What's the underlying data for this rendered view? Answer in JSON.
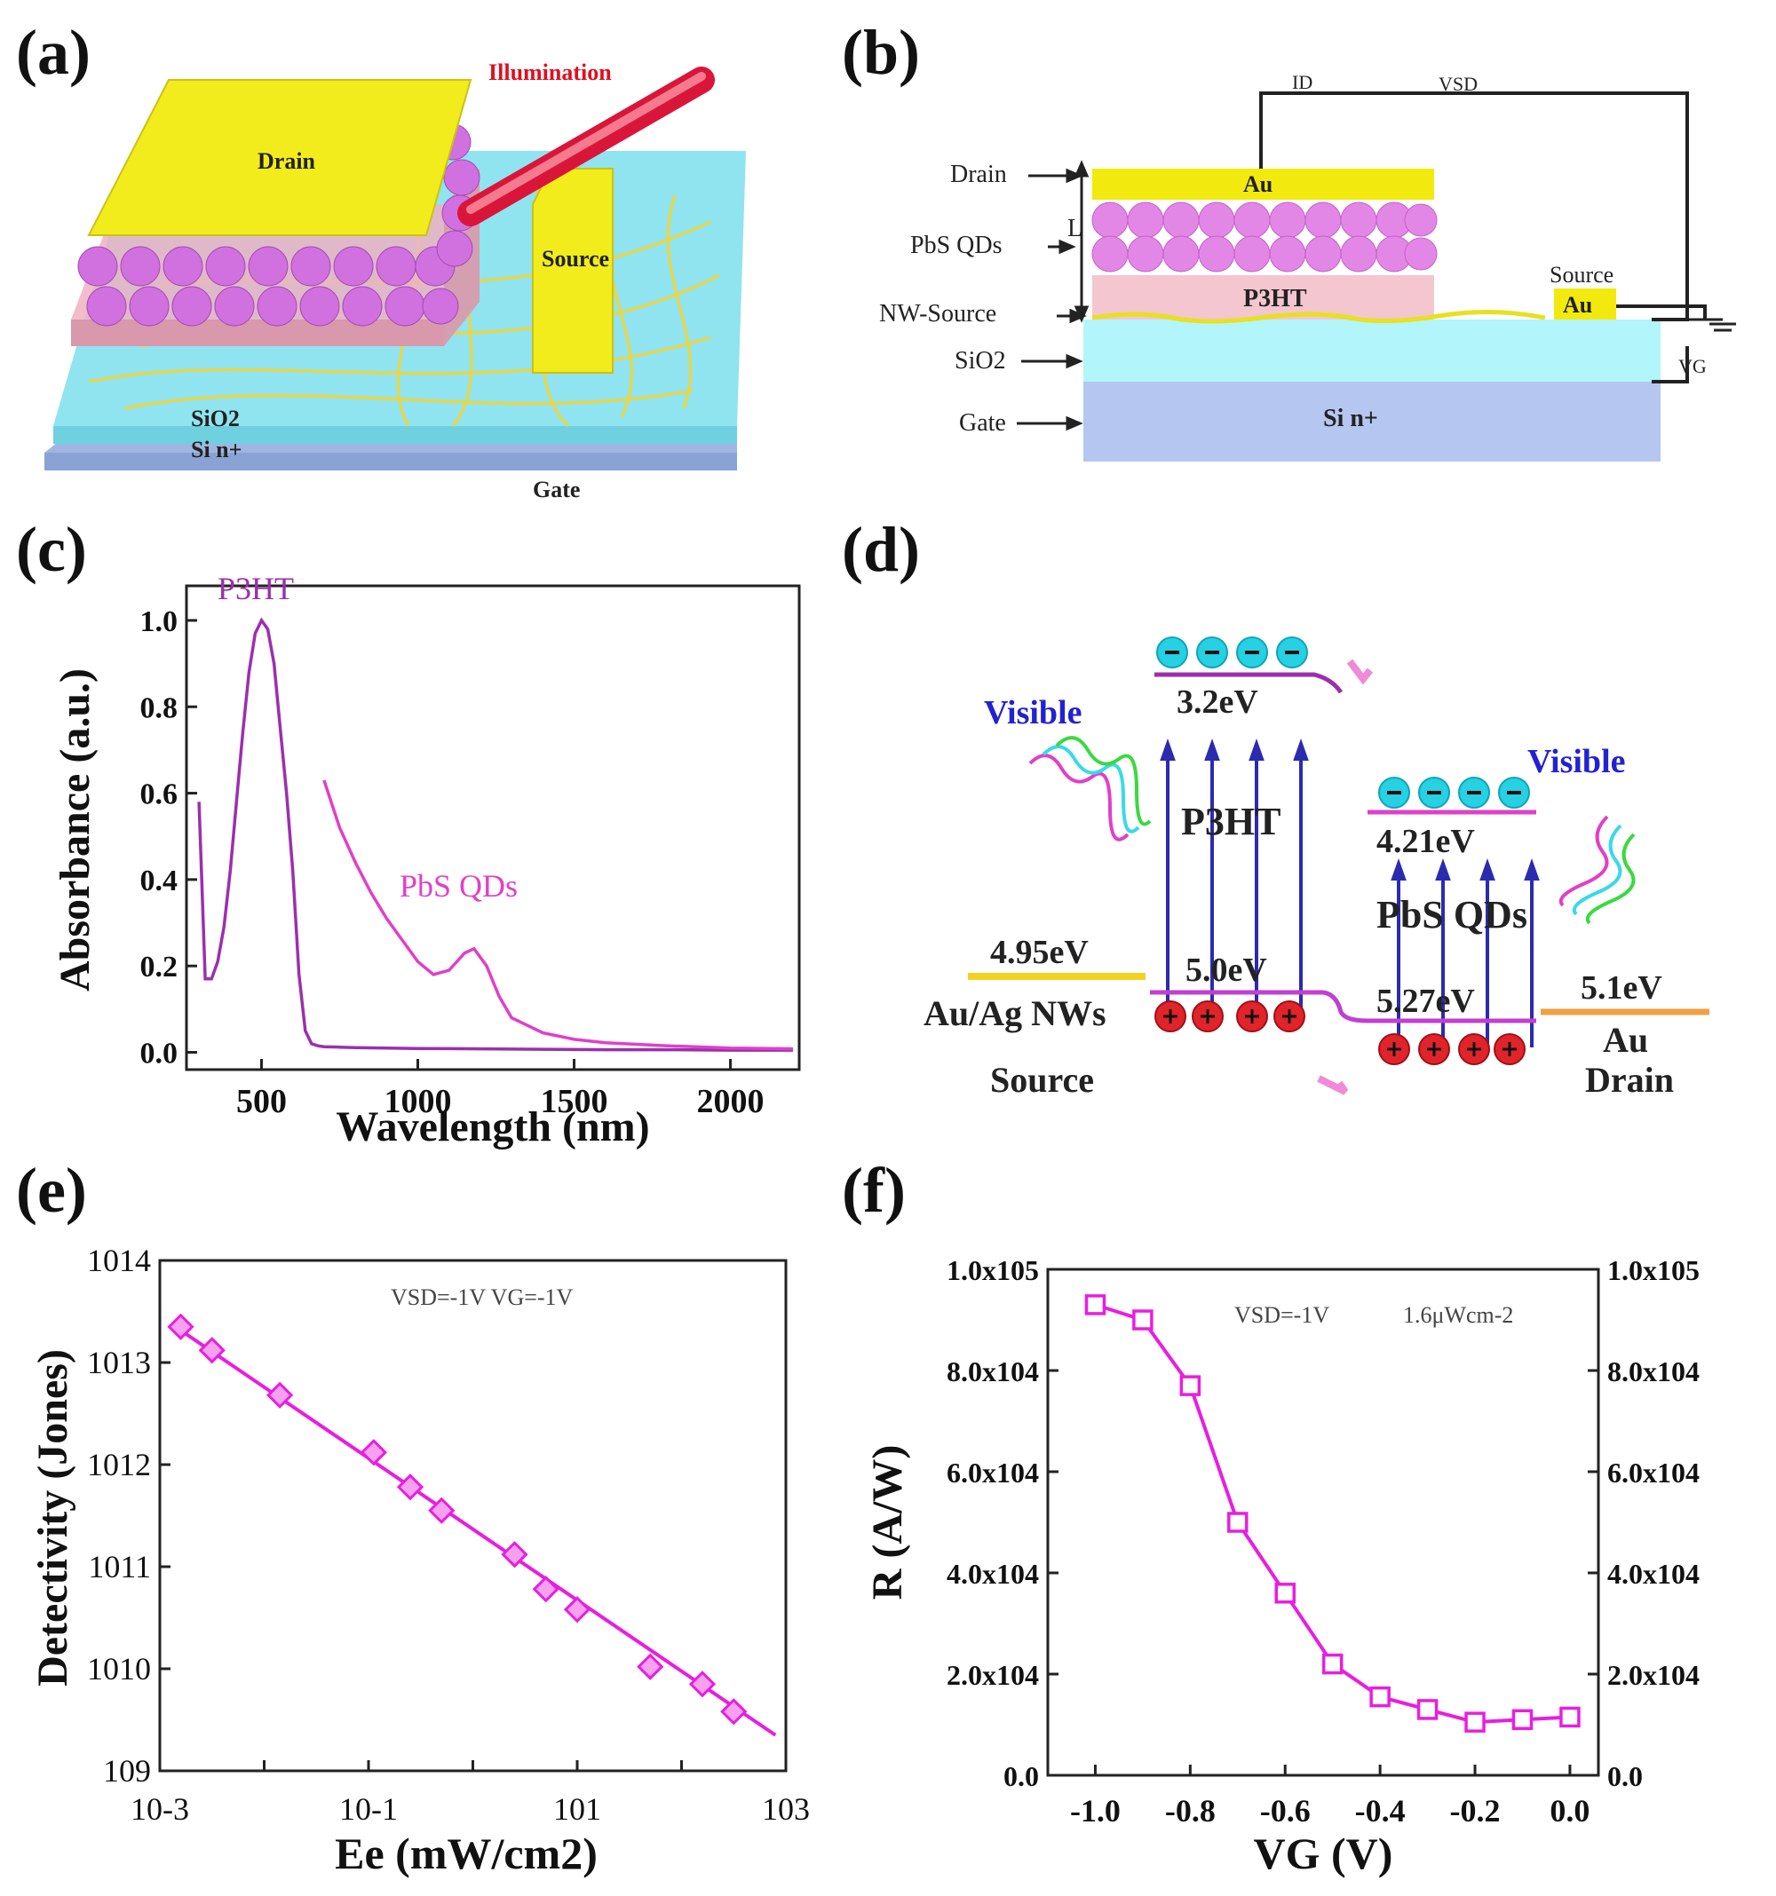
{
  "panels": {
    "a": {
      "label": "(a)",
      "illumination": "Illumination",
      "drain": "Drain",
      "source": "Source",
      "sio2": "SiO2",
      "si": "Si n+",
      "gate": "Gate"
    },
    "b": {
      "label": "(b)",
      "ids": "ID",
      "vsd": "VSD",
      "vg": "VG",
      "drain": "Drain",
      "pbs": "PbS QDs",
      "nw_source": "NW-Source",
      "sio2": "SiO2",
      "gate": "Gate",
      "au_top": "Au",
      "au_source": "Au",
      "source": "Source",
      "p3ht": "P3HT",
      "sin": "Si n+",
      "l": "L"
    },
    "c": {
      "label": "(c)"
    },
    "d": {
      "label": "(d)",
      "visible_left": "Visible",
      "visible_right": "Visible",
      "p3ht": "P3HT",
      "pbs": "PbS QDs",
      "e1": "3.2eV",
      "e2": "4.21eV",
      "e3": "4.95eV",
      "e4": "5.0eV",
      "e5": "5.27eV",
      "e6": "5.1eV",
      "source_mat": "Au/Ag NWs",
      "source": "Source",
      "drain_mat": "Au",
      "drain": "Drain"
    },
    "e": {
      "label": "(e)"
    },
    "f": {
      "label": "(f)"
    }
  },
  "chart_data": [
    {
      "panel": "c",
      "type": "line",
      "xlabel": "Wavelength (nm)",
      "ylabel": "Absorbance (a.u.)",
      "xlim": [
        260,
        2220
      ],
      "ylim": [
        -0.04,
        1.08
      ],
      "xticks": [
        500,
        1000,
        1500,
        2000
      ],
      "xtick_labels": [
        "500",
        "1000",
        "1500",
        "2000"
      ],
      "yticks": [
        0.0,
        0.2,
        0.4,
        0.6,
        0.8,
        1.0
      ],
      "ytick_labels": [
        "0.0",
        "0.2",
        "0.4",
        "0.6",
        "0.8",
        "1.0"
      ],
      "series": [
        {
          "name": "P3HT",
          "color": "#9b2fae",
          "x": [
            300,
            320,
            340,
            360,
            380,
            400,
            420,
            440,
            460,
            480,
            500,
            520,
            540,
            560,
            580,
            600,
            620,
            640,
            660,
            680,
            700,
            750,
            800,
            900,
            1000,
            1200,
            1400,
            1600,
            1800,
            2000,
            2200
          ],
          "y": [
            0.58,
            0.17,
            0.17,
            0.21,
            0.29,
            0.42,
            0.58,
            0.74,
            0.88,
            0.97,
            1.0,
            0.98,
            0.9,
            0.75,
            0.6,
            0.42,
            0.18,
            0.05,
            0.02,
            0.015,
            0.013,
            0.012,
            0.011,
            0.01,
            0.009,
            0.008,
            0.007,
            0.006,
            0.006,
            0.005,
            0.005
          ]
        },
        {
          "name": "PbS QDs",
          "color": "#e040c8",
          "x": [
            700,
            750,
            800,
            850,
            900,
            950,
            1000,
            1050,
            1100,
            1150,
            1180,
            1220,
            1260,
            1300,
            1400,
            1500,
            1600,
            1800,
            2000,
            2200
          ],
          "y": [
            0.63,
            0.52,
            0.44,
            0.37,
            0.31,
            0.26,
            0.21,
            0.18,
            0.19,
            0.23,
            0.24,
            0.2,
            0.13,
            0.08,
            0.045,
            0.03,
            0.022,
            0.015,
            0.01,
            0.008
          ]
        }
      ],
      "annotations": [
        "P3HT",
        "PbS QDs"
      ]
    },
    {
      "panel": "e",
      "type": "scatter",
      "xscale": "log",
      "yscale": "log",
      "xlabel": "Ee (mW/cm2)",
      "ylabel": "Detectivity (Jones)",
      "xlim_log10": [
        -3,
        3
      ],
      "ylim_log10": [
        9,
        14
      ],
      "xtick_labels": [
        "10-3",
        "10-1",
        "101",
        "103"
      ],
      "ytick_labels": [
        "109",
        "1010",
        "1011",
        "1012",
        "1013",
        "1014"
      ],
      "annotation": "VSD=-1V VG=-1V",
      "color": "#e81ee0",
      "points": [
        {
          "log_x": -2.8,
          "log_y": 13.35
        },
        {
          "log_x": -2.5,
          "log_y": 13.12
        },
        {
          "log_x": -1.85,
          "log_y": 12.68
        },
        {
          "log_x": -0.95,
          "log_y": 12.12
        },
        {
          "log_x": -0.6,
          "log_y": 11.78
        },
        {
          "log_x": -0.3,
          "log_y": 11.55
        },
        {
          "log_x": 0.4,
          "log_y": 11.12
        },
        {
          "log_x": 0.7,
          "log_y": 10.78
        },
        {
          "log_x": 1.0,
          "log_y": 10.58
        },
        {
          "log_x": 1.7,
          "log_y": 10.02
        },
        {
          "log_x": 2.2,
          "log_y": 9.85
        },
        {
          "log_x": 2.5,
          "log_y": 9.58
        }
      ],
      "fit_line": {
        "log_x": [
          -2.85,
          2.9
        ],
        "log_y": [
          13.35,
          9.35
        ]
      }
    },
    {
      "panel": "f",
      "type": "line",
      "xlabel": "VG (V)",
      "ylabel": "R (A/W)",
      "xlim": [
        -1.1,
        0.06
      ],
      "ylim": [
        0,
        100000
      ],
      "xticks": [
        -1.0,
        -0.8,
        -0.6,
        -0.4,
        -0.2,
        0.0
      ],
      "xtick_labels": [
        "-1.0",
        "-0.8",
        "-0.6",
        "-0.4",
        "-0.2",
        "0.0"
      ],
      "yticks": [
        0,
        20000,
        40000,
        60000,
        80000,
        100000
      ],
      "ytick_labels": [
        "0.0",
        "2.0x104",
        "4.0x104",
        "6.0x104",
        "8.0x104",
        "1.0x105"
      ],
      "annotation_1": "VSD=-1V",
      "annotation_2": "1.6μWcm-2",
      "color": "#e81ee0",
      "x": [
        -1.0,
        -0.9,
        -0.8,
        -0.7,
        -0.6,
        -0.5,
        -0.4,
        -0.3,
        -0.2,
        -0.1,
        0.0
      ],
      "y": [
        93000,
        90000,
        77000,
        50000,
        36000,
        22000,
        15500,
        13000,
        10500,
        11000,
        11500
      ]
    }
  ]
}
